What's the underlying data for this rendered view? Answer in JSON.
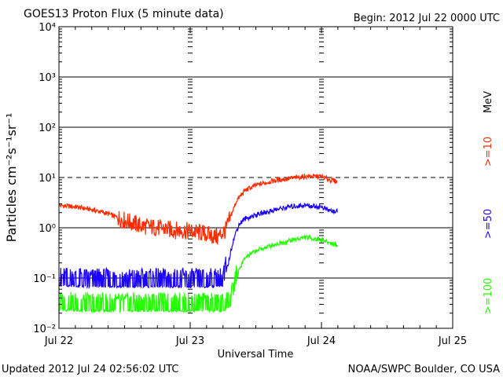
{
  "header": {
    "title": "GOES13 Proton Flux (5 minute data)",
    "begin": "Begin: 2012 Jul 22 0000 UTC"
  },
  "footer": {
    "updated": "Updated 2012 Jul 24 02:56:02 UTC",
    "credit": "NOAA/SWPC Boulder, CO USA"
  },
  "chart_data": {
    "type": "line",
    "title": "GOES13 Proton Flux (5 minute data)",
    "xlabel": "Universal Time",
    "ylabel": "Particles cm⁻²s⁻¹sr⁻¹",
    "y_scale": "log",
    "ylim": [
      0.01,
      10000
    ],
    "y_ticks": [
      "10⁻²",
      "10⁻¹",
      "10⁰",
      "10¹",
      "10²",
      "10³",
      "10⁴"
    ],
    "xlim": [
      "2012-07-22 00:00",
      "2012-07-25 00:00"
    ],
    "x_ticks": [
      {
        "t": "2012-07-22 00:00",
        "label": "Jul 22"
      },
      {
        "t": "2012-07-23 00:00",
        "label": "Jul 23"
      },
      {
        "t": "2012-07-24 00:00",
        "label": "Jul 24"
      },
      {
        "t": "2012-07-25 00:00",
        "label": "Jul 25"
      }
    ],
    "unit_label": "MeV",
    "threshold": 10,
    "grid": true,
    "series": [
      {
        "name": ">=10",
        "color": "#ff2a00",
        "points": [
          [
            "2012-07-22 00:00",
            2.8
          ],
          [
            "2012-07-22 03:00",
            2.6
          ],
          [
            "2012-07-22 06:00",
            2.3
          ],
          [
            "2012-07-22 09:00",
            1.9
          ],
          [
            "2012-07-22 12:00",
            1.4
          ],
          [
            "2012-07-22 15:00",
            1.1
          ],
          [
            "2012-07-22 18:00",
            1.0
          ],
          [
            "2012-07-22 21:00",
            0.9
          ],
          [
            "2012-07-23 00:00",
            0.85
          ],
          [
            "2012-07-23 03:00",
            0.75
          ],
          [
            "2012-07-23 05:00",
            0.65
          ],
          [
            "2012-07-23 06:30",
            0.9
          ],
          [
            "2012-07-23 07:30",
            1.8
          ],
          [
            "2012-07-23 08:30",
            3.5
          ],
          [
            "2012-07-23 10:00",
            5.5
          ],
          [
            "2012-07-23 12:00",
            7.0
          ],
          [
            "2012-07-23 15:00",
            8.5
          ],
          [
            "2012-07-23 18:00",
            9.5
          ],
          [
            "2012-07-23 21:00",
            10.5
          ],
          [
            "2012-07-24 00:00",
            10.5
          ],
          [
            "2012-07-24 01:30",
            9.0
          ],
          [
            "2012-07-24 02:55",
            8.3
          ]
        ]
      },
      {
        "name": ">=50",
        "color": "#1a00ff",
        "points": [
          [
            "2012-07-22 00:00",
            0.075
          ],
          [
            "2012-07-22 06:00",
            0.07
          ],
          [
            "2012-07-22 12:00",
            0.07
          ],
          [
            "2012-07-22 18:00",
            0.07
          ],
          [
            "2012-07-23 00:00",
            0.07
          ],
          [
            "2012-07-23 05:00",
            0.07
          ],
          [
            "2012-07-23 06:00",
            0.075
          ],
          [
            "2012-07-23 07:00",
            0.2
          ],
          [
            "2012-07-23 07:45",
            0.5
          ],
          [
            "2012-07-23 08:30",
            0.9
          ],
          [
            "2012-07-23 09:00",
            1.2
          ],
          [
            "2012-07-23 10:00",
            1.5
          ],
          [
            "2012-07-23 12:00",
            1.8
          ],
          [
            "2012-07-23 15:00",
            2.2
          ],
          [
            "2012-07-23 18:00",
            2.6
          ],
          [
            "2012-07-23 21:00",
            2.8
          ],
          [
            "2012-07-24 00:00",
            2.6
          ],
          [
            "2012-07-24 01:30",
            2.2
          ],
          [
            "2012-07-24 02:55",
            2.1
          ]
        ]
      },
      {
        "name": ">=100",
        "color": "#22ff00",
        "points": [
          [
            "2012-07-22 00:00",
            0.024
          ],
          [
            "2012-07-22 06:00",
            0.023
          ],
          [
            "2012-07-22 12:00",
            0.023
          ],
          [
            "2012-07-22 18:00",
            0.023
          ],
          [
            "2012-07-23 00:00",
            0.023
          ],
          [
            "2012-07-23 06:00",
            0.023
          ],
          [
            "2012-07-23 07:30",
            0.03
          ],
          [
            "2012-07-23 08:15",
            0.07
          ],
          [
            "2012-07-23 09:00",
            0.15
          ],
          [
            "2012-07-23 10:00",
            0.25
          ],
          [
            "2012-07-23 12:00",
            0.35
          ],
          [
            "2012-07-23 15:00",
            0.45
          ],
          [
            "2012-07-23 18:00",
            0.55
          ],
          [
            "2012-07-23 21:00",
            0.65
          ],
          [
            "2012-07-24 00:00",
            0.58
          ],
          [
            "2012-07-24 01:30",
            0.5
          ],
          [
            "2012-07-24 02:55",
            0.45
          ]
        ]
      }
    ]
  }
}
